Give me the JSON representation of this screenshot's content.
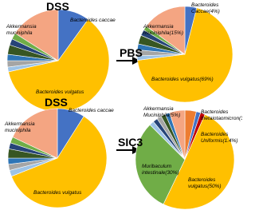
{
  "chart_data": [
    {
      "type": "pie",
      "title": "DSS",
      "categories": [
        "Bacteroides caccae",
        "Bacteroides vulgatus",
        null,
        null,
        null,
        null,
        null,
        null,
        "Akkermansia muciniphila"
      ],
      "values": [
        10,
        61.5,
        1.5,
        2,
        2,
        3,
        2,
        2,
        16
      ],
      "colors": [
        "#4472c4",
        "#ffc000",
        "#9dc3e6",
        "#a5a5a5",
        "#2e75b6",
        "#375623",
        "#264478",
        "#70ad47",
        "#f4a582"
      ]
    },
    {
      "type": "pie",
      "treatment": "PBS",
      "categories": [
        "Bacteroides Caccae(4%)",
        "Bacteroides  vulgatus(69%)",
        null,
        null,
        null,
        null,
        null,
        null,
        "Akkermansia muciniphila(15%)"
      ],
      "values": [
        4,
        69,
        1.5,
        2,
        2,
        3,
        2,
        1.5,
        15
      ],
      "colors": [
        "#4472c4",
        "#ffc000",
        "#9dc3e6",
        "#a5a5a5",
        "#2e75b6",
        "#375623",
        "#264478",
        "#70ad47",
        "#f4a582"
      ]
    },
    {
      "type": "pie",
      "title": "DSS",
      "categories": [
        "Bacteroides caccae",
        "Bacteroides vulgatus",
        null,
        null,
        null,
        null,
        null,
        null,
        "Akkermansia muciniphila"
      ],
      "values": [
        9,
        60,
        2,
        2,
        2,
        3,
        2,
        2,
        18
      ],
      "colors": [
        "#4472c4",
        "#ffc000",
        "#9dc3e6",
        "#a5a5a5",
        "#2e75b6",
        "#375623",
        "#264478",
        "#70ad47",
        "#f4a582"
      ]
    },
    {
      "type": "pie",
      "treatment": "SIC3",
      "categories": [
        "Bacteroides thetaiotaomicron(3.7%)",
        "Bacteroides Uniformis(1.4%)",
        null,
        "Bacteroides vulgatus(50%)",
        "Muribaculum intestinale(30%)",
        null,
        null,
        null,
        null,
        null,
        "Akkermansia Muciniphila(5%)"
      ],
      "values": [
        3.7,
        1.4,
        1.5,
        50,
        30,
        1.5,
        1.5,
        1.5,
        1.5,
        1.4,
        5
      ],
      "colors": [
        "#ed7d31",
        "#4472c4",
        "#c00000",
        "#ffc000",
        "#70ad47",
        "#9dc3e6",
        "#264478",
        "#a5a5a5",
        "#375623",
        "#2e75b6",
        "#f4a582"
      ]
    }
  ]
}
